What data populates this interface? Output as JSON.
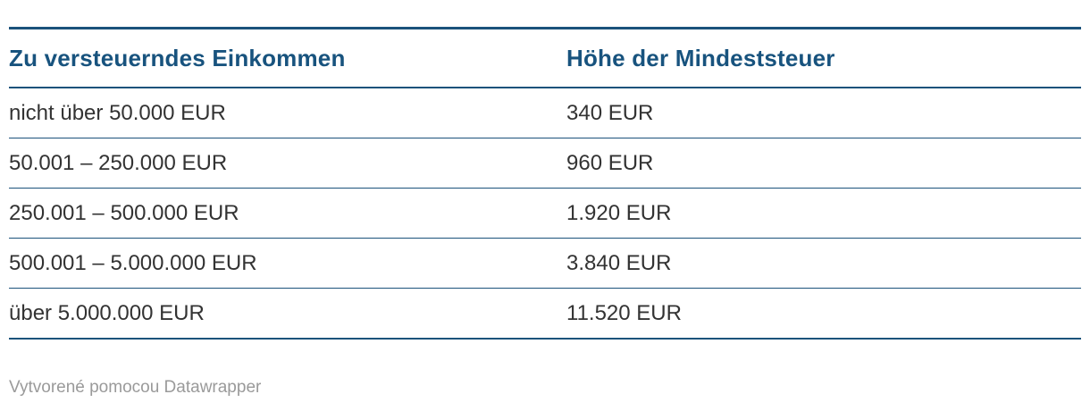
{
  "table": {
    "columns": [
      "Zu versteuerndes Einkommen",
      "Höhe der Mindeststeuer"
    ],
    "rows": [
      [
        "nicht über 50.000 EUR",
        "340 EUR"
      ],
      [
        "50.001 – 250.000 EUR",
        "960 EUR"
      ],
      [
        "250.001 – 500.000 EUR",
        "1.920 EUR"
      ],
      [
        "500.001 – 5.000.000 EUR",
        "3.840 EUR"
      ],
      [
        "über 5.000.000 EUR",
        "11.520 EUR"
      ]
    ]
  },
  "footer": {
    "attribution": "Vytvorené pomocou Datawrapper"
  },
  "colors": {
    "accent_blue": "#1B527B",
    "header_text": "#18537E",
    "row_text": "#333333",
    "muted_gray": "#9A9A9A"
  },
  "chart_data": {
    "type": "table",
    "title": "",
    "columns": [
      "Zu versteuerndes Einkommen",
      "Höhe der Mindeststeuer"
    ],
    "rows": [
      [
        "nicht über 50.000 EUR",
        "340 EUR"
      ],
      [
        "50.001 – 250.000 EUR",
        "960 EUR"
      ],
      [
        "250.001 – 500.000 EUR",
        "1.920 EUR"
      ],
      [
        "500.001 – 5.000.000 EUR",
        "3.840 EUR"
      ],
      [
        "über 5.000.000 EUR",
        "11.520 EUR"
      ]
    ],
    "income_categories": [
      "nicht über 50.000 EUR",
      "50.001 – 250.000 EUR",
      "250.001 – 500.000 EUR",
      "500.001 – 5.000.000 EUR",
      "über 5.000.000 EUR"
    ],
    "min_tax_values_eur": [
      340,
      960,
      1920,
      3840,
      11520
    ]
  }
}
